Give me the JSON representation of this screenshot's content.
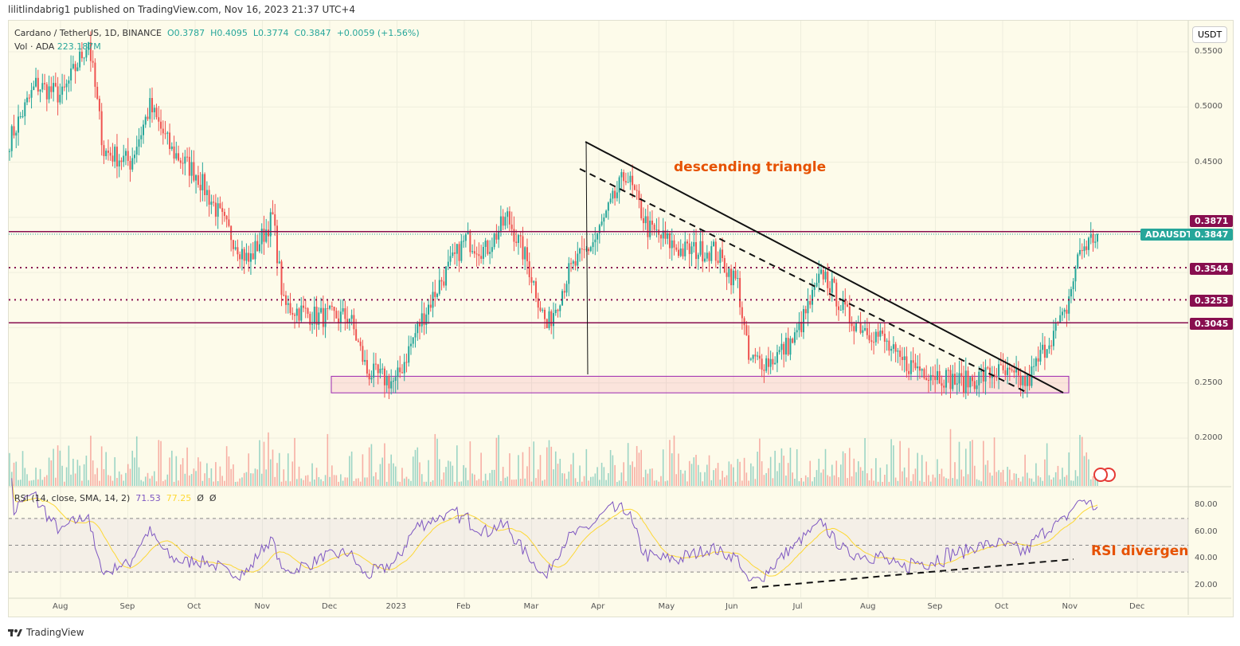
{
  "header": {
    "published": "lilitlindabrig1 published on TradingView.com, Nov 16, 2023 21:37 UTC+4"
  },
  "legend": {
    "symbol": "Cardano / TetherUS, 1D, BINANCE",
    "o": "O0.3787",
    "h": "H0.4095",
    "l": "L0.3774",
    "c": "C0.3847",
    "chg": "+0.0059 (+1.56%)",
    "vol_label": "Vol · ADA",
    "vol": "223.187M"
  },
  "currency_button": "USDT",
  "rsi_legend": {
    "label": "RSI (14, close, SMA, 14, 2)",
    "rsi": "71.53",
    "sma": "77.25",
    "a": "Ø",
    "b": "Ø"
  },
  "annotations": {
    "triangle": "descending triangle",
    "rsi_div": "RSI divergence"
  },
  "price_tags": {
    "level1": "0.3871",
    "symbol": "ADAUSDT",
    "last": "0.3847",
    "level2": "0.3544",
    "level3": "0.3253",
    "level4": "0.3045"
  },
  "footer": {
    "brand": "TradingView"
  },
  "colors": {
    "up": "#26a69a",
    "down": "#ef5350",
    "level": "#880e4f",
    "rsi": "#7e57c2",
    "sma": "#fdd835",
    "annot": "#e65100"
  },
  "chart_data": {
    "type": "candlestick",
    "title": "Cardano / TetherUS, 1D, BINANCE",
    "price_axis": {
      "ticks": [
        "0.5500",
        "0.5000",
        "0.4500",
        "0.2500",
        "0.2000"
      ],
      "range": [
        0.16,
        0.57
      ]
    },
    "rsi_axis": {
      "ticks": [
        "80.00",
        "60.00",
        "40.00",
        "20.00"
      ],
      "bands": [
        70,
        50,
        30
      ]
    },
    "time_ticks": [
      "Aug",
      "Sep",
      "Oct",
      "Nov",
      "Dec",
      "2023",
      "Feb",
      "Mar",
      "Apr",
      "May",
      "Jun",
      "Jul",
      "Aug",
      "Sep",
      "Oct",
      "Nov",
      "Dec"
    ],
    "levels": [
      0.3871,
      0.3544,
      0.3253,
      0.3045
    ],
    "support_zone": [
      0.241,
      0.256
    ],
    "close_anchors": [
      [
        "2022-07-08",
        0.47
      ],
      [
        "2022-07-20",
        0.52
      ],
      [
        "2022-08-01",
        0.51
      ],
      [
        "2022-08-13",
        0.56
      ],
      [
        "2022-08-20",
        0.46
      ],
      [
        "2022-09-01",
        0.45
      ],
      [
        "2022-09-10",
        0.5
      ],
      [
        "2022-09-20",
        0.46
      ],
      [
        "2022-10-01",
        0.44
      ],
      [
        "2022-10-15",
        0.39
      ],
      [
        "2022-10-25",
        0.36
      ],
      [
        "2022-11-05",
        0.4
      ],
      [
        "2022-11-10",
        0.32
      ],
      [
        "2022-11-25",
        0.31
      ],
      [
        "2022-12-10",
        0.31
      ],
      [
        "2022-12-18",
        0.26
      ],
      [
        "2022-12-31",
        0.25
      ],
      [
        "2023-01-10",
        0.3
      ],
      [
        "2023-01-20",
        0.34
      ],
      [
        "2023-02-01",
        0.38
      ],
      [
        "2023-02-10",
        0.37
      ],
      [
        "2023-02-20",
        0.4
      ],
      [
        "2023-03-01",
        0.36
      ],
      [
        "2023-03-10",
        0.3
      ],
      [
        "2023-03-20",
        0.35
      ],
      [
        "2023-04-01",
        0.38
      ],
      [
        "2023-04-15",
        0.44
      ],
      [
        "2023-04-25",
        0.39
      ],
      [
        "2023-05-10",
        0.37
      ],
      [
        "2023-05-25",
        0.37
      ],
      [
        "2023-06-05",
        0.34
      ],
      [
        "2023-06-10",
        0.27
      ],
      [
        "2023-06-20",
        0.27
      ],
      [
        "2023-07-01",
        0.29
      ],
      [
        "2023-07-14",
        0.35
      ],
      [
        "2023-07-25",
        0.31
      ],
      [
        "2023-08-10",
        0.29
      ],
      [
        "2023-08-17",
        0.27
      ],
      [
        "2023-09-01",
        0.26
      ],
      [
        "2023-09-15",
        0.25
      ],
      [
        "2023-10-01",
        0.26
      ],
      [
        "2023-10-15",
        0.25
      ],
      [
        "2023-10-25",
        0.29
      ],
      [
        "2023-11-01",
        0.31
      ],
      [
        "2023-11-08",
        0.37
      ],
      [
        "2023-11-16",
        0.3847
      ]
    ]
  }
}
